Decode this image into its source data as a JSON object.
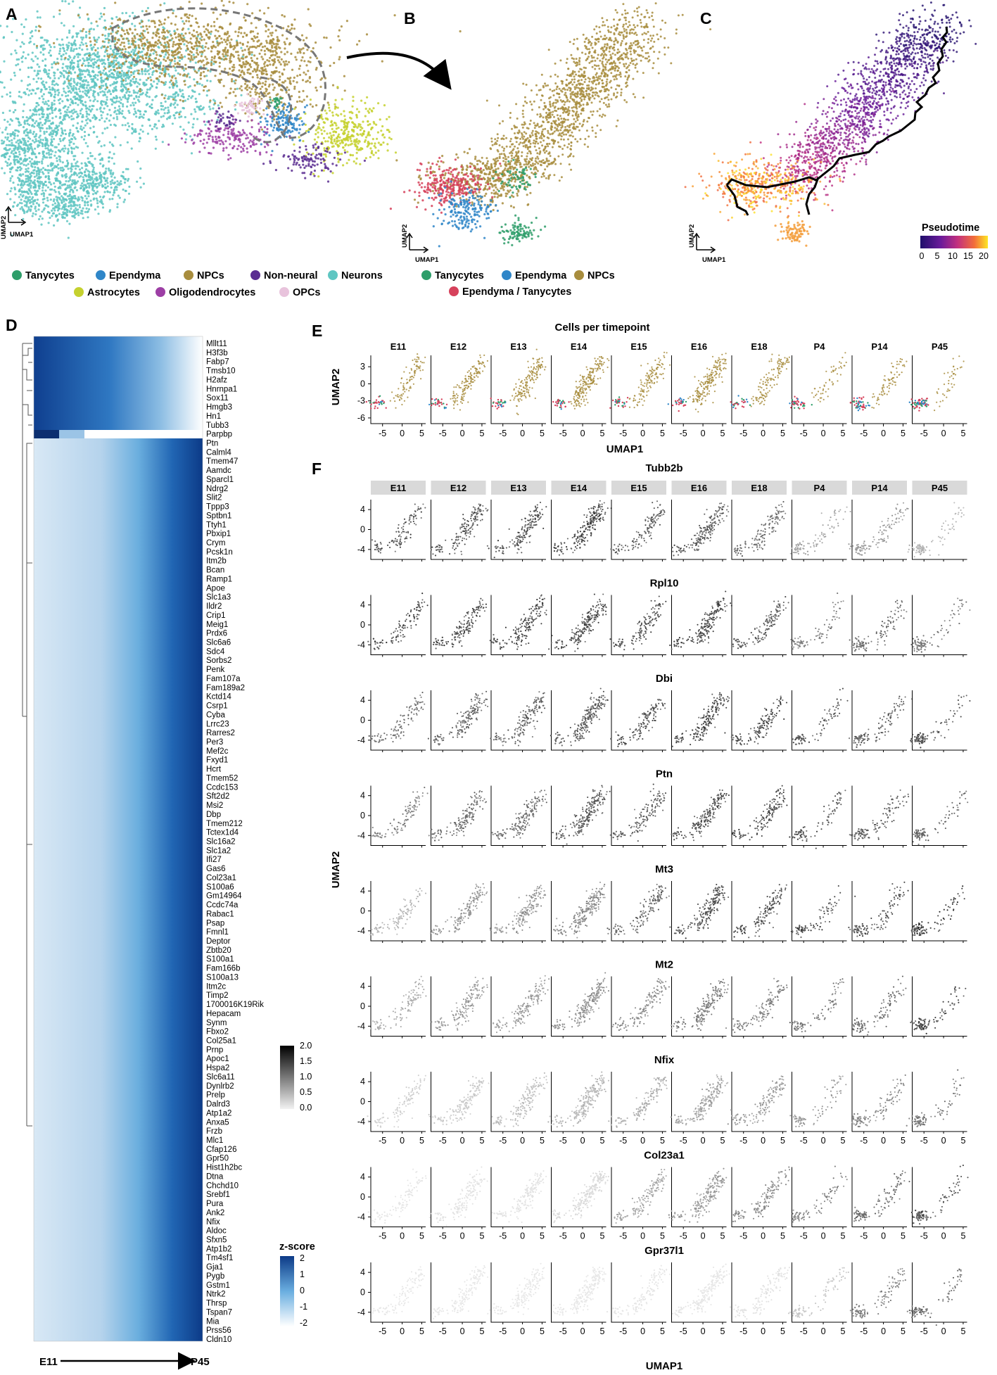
{
  "panel_labels": [
    "A",
    "B",
    "C",
    "D",
    "E",
    "F"
  ],
  "colors": {
    "Tanycytes": "#2e9e6a",
    "Ependyma": "#2f86c8",
    "NPCs": "#a88d3e",
    "Non-neural": "#5a2d91",
    "Neurons": "#5fc6c2",
    "Astrocytes": "#c5d12f",
    "Oligodendrocytes": "#9d3fa5",
    "OPCs": "#e8c3dc",
    "Ependyma / Tanycytes": "#d6415b",
    "umap_points": "#333333",
    "heat_low": "#ffffff",
    "heat_high": "#0c3a87"
  },
  "panel_a": {
    "axis_x": "UMAP1",
    "axis_y": "UMAP2",
    "legend": [
      {
        "label": "Tanycytes",
        "color": "#2e9e6a"
      },
      {
        "label": "Ependyma",
        "color": "#2f86c8"
      },
      {
        "label": "NPCs",
        "color": "#a88d3e"
      },
      {
        "label": "Non-neural",
        "color": "#5a2d91"
      },
      {
        "label": "Neurons",
        "color": "#5fc6c2"
      },
      {
        "label": "Astrocytes",
        "color": "#c5d12f"
      },
      {
        "label": "Oligodendrocytes",
        "color": "#9d3fa5"
      },
      {
        "label": "OPCs",
        "color": "#e8c3dc"
      }
    ]
  },
  "panel_b": {
    "axis_x": "UMAP1",
    "axis_y": "UMAP2",
    "legend": [
      {
        "label": "Tanycytes",
        "color": "#2e9e6a"
      },
      {
        "label": "Ependyma",
        "color": "#2f86c8"
      },
      {
        "label": "NPCs",
        "color": "#a88d3e"
      },
      {
        "label": "Ependyma / Tanycytes",
        "color": "#d6415b"
      }
    ]
  },
  "panel_c": {
    "axis_x": "UMAP1",
    "axis_y": "UMAP2",
    "colorbar_title": "Pseudotime",
    "colorbar_ticks": [
      "0",
      "5",
      "10",
      "15",
      "20"
    ]
  },
  "panel_d": {
    "genes": [
      "Mllt11",
      "H3f3b",
      "Fabp7",
      "Tmsb10",
      "H2afz",
      "Hnrnpa1",
      "Sox11",
      "Hmgb3",
      "Hn1",
      "Tubb3",
      "Parpbp",
      "Ptn",
      "Calml4",
      "Tmem47",
      "Aamdc",
      "Sparcl1",
      "Ndrg2",
      "Slit2",
      "Tppp3",
      "Sptbn1",
      "Ttyh1",
      "Pbxip1",
      "Crym",
      "Pcsk1n",
      "Itm2b",
      "Bcan",
      "Ramp1",
      "Apoe",
      "Slc1a3",
      "Ildr2",
      "Crip1",
      "Meig1",
      "Prdx6",
      "Slc6a6",
      "Sdc4",
      "Sorbs2",
      "Penk",
      "Fam107a",
      "Fam189a2",
      "Kctd14",
      "Csrp1",
      "Cyba",
      "Lrrc23",
      "Rarres2",
      "Per3",
      "Mef2c",
      "Fxyd1",
      "Hcrt",
      "Tmem52",
      "Ccdc153",
      "Sft2d2",
      "Msi2",
      "Dbp",
      "Tmem212",
      "Tctex1d4",
      "Slc16a2",
      "Slc1a2",
      "Ifi27",
      "Gas6",
      "Col23a1",
      "S100a6",
      "Gm14964",
      "Ccdc74a",
      "Rabac1",
      "Psap",
      "Fmnl1",
      "Deptor",
      "Zbtb20",
      "S100a1",
      "Fam166b",
      "S100a13",
      "Itm2c",
      "Timp2",
      "1700016K19Rik",
      "Hepacam",
      "Synm",
      "Fbxo2",
      "Col25a1",
      "Prnp",
      "Apoc1",
      "Hspa2",
      "Slc6a11",
      "Dynlrb2",
      "Prelp",
      "Dalrd3",
      "Atp1a2",
      "Anxa5",
      "Frzb",
      "Mlc1",
      "Cfap126",
      "Gpr50",
      "Hist1h2bc",
      "Dtna",
      "Chchd10",
      "Srebf1",
      "Pura",
      "Ank2",
      "Nfix",
      "Aldoc",
      "Sfxn5",
      "Atp1b2",
      "Tm4sf1",
      "Gja1",
      "Pygb",
      "Gstm1",
      "Ntrk2",
      "Thrsp",
      "Tspan7",
      "Mia",
      "Prss56",
      "Cldn10"
    ],
    "x_start_label": "E11",
    "x_end_label": "P45",
    "zscore_legend_title": "z-score",
    "zscore_ticks": [
      "2",
      "1",
      "0",
      "-1",
      "-2"
    ],
    "expr_legend_ticks": [
      "2.0",
      "1.5",
      "1.0",
      "0.5",
      "0.0"
    ]
  },
  "panel_e": {
    "title": "Cells per timepoint",
    "xlabel": "UMAP1",
    "ylabel": "UMAP2",
    "timepoints": [
      "E11",
      "E12",
      "E13",
      "E14",
      "E15",
      "E16",
      "E18",
      "P4",
      "P14",
      "P45"
    ],
    "x_ticks": [
      "-5",
      "0",
      "5"
    ],
    "y_ticks": [
      "3",
      "0",
      "-3",
      "-6"
    ]
  },
  "panel_f": {
    "xlabel": "UMAP1",
    "ylabel": "UMAP2",
    "timepoints": [
      "E11",
      "E12",
      "E13",
      "E14",
      "E15",
      "E16",
      "E18",
      "P4",
      "P14",
      "P45"
    ],
    "x_ticks": [
      "-5",
      "0",
      "5"
    ],
    "y_ticks": [
      "4",
      "0",
      "-4"
    ],
    "genes": [
      "Tubb2b",
      "Rpl10",
      "Dbi",
      "Ptn",
      "Mt3",
      "Mt2",
      "Nfix",
      "Col23a1",
      "Gpr37l1"
    ]
  },
  "chart_data": [
    {
      "type": "scatter",
      "panel": "A",
      "xlabel": "UMAP1",
      "ylabel": "UMAP2",
      "series": [
        {
          "name": "Tanycytes"
        },
        {
          "name": "Ependyma"
        },
        {
          "name": "NPCs"
        },
        {
          "name": "Non-neural"
        },
        {
          "name": "Neurons"
        },
        {
          "name": "Astrocytes"
        },
        {
          "name": "Oligodendrocytes"
        },
        {
          "name": "OPCs"
        }
      ]
    },
    {
      "type": "scatter",
      "panel": "B",
      "xlabel": "UMAP1",
      "ylabel": "UMAP2",
      "series": [
        {
          "name": "Tanycytes"
        },
        {
          "name": "Ependyma"
        },
        {
          "name": "NPCs"
        },
        {
          "name": "Ependyma / Tanycytes"
        }
      ]
    },
    {
      "type": "scatter",
      "panel": "C",
      "xlabel": "UMAP1",
      "ylabel": "UMAP2",
      "colorbar": {
        "title": "Pseudotime",
        "range": [
          0,
          22
        ],
        "ticks": [
          0,
          5,
          10,
          15,
          20
        ]
      }
    },
    {
      "type": "heatmap",
      "panel": "D",
      "x_range_labels": [
        "E11",
        "P45"
      ],
      "z_range": [
        -2,
        2
      ],
      "gene_groups": [
        {
          "genes_from": "Mllt11",
          "genes_to": "Tubb3",
          "pattern": "high early, decreasing to P45"
        },
        {
          "genes_from": "Parpbp",
          "genes_to": "Parpbp",
          "pattern": "high at E11 only"
        },
        {
          "genes_from": "Ptn",
          "genes_to": "Cldn10",
          "pattern": "low early, increasing to P45"
        }
      ]
    },
    {
      "type": "scatter",
      "panel": "E",
      "title": "Cells per timepoint",
      "xlabel": "UMAP1",
      "ylabel": "UMAP2",
      "categories": [
        "E11",
        "E12",
        "E13",
        "E14",
        "E15",
        "E16",
        "E18",
        "P4",
        "P14",
        "P45"
      ],
      "xlim": [
        -8,
        6
      ],
      "ylim": [
        -7,
        5
      ],
      "x_ticks": [
        -5,
        0,
        5
      ],
      "y_ticks": [
        3,
        0,
        -3,
        -6
      ]
    },
    {
      "type": "scatter",
      "panel": "F",
      "xlabel": "UMAP1",
      "ylabel": "UMAP2",
      "categories": [
        "E11",
        "E12",
        "E13",
        "E14",
        "E15",
        "E16",
        "E18",
        "P4",
        "P14",
        "P45"
      ],
      "xlim": [
        -8,
        6
      ],
      "ylim": [
        -6,
        6
      ],
      "x_ticks": [
        -5,
        0,
        5
      ],
      "y_ticks": [
        4,
        0,
        -4
      ],
      "expression_range": [
        0.0,
        2.0
      ],
      "genes": [
        "Tubb2b",
        "Rpl10",
        "Dbi",
        "Ptn",
        "Mt3",
        "Mt2",
        "Nfix",
        "Col23a1",
        "Gpr37l1"
      ]
    }
  ]
}
